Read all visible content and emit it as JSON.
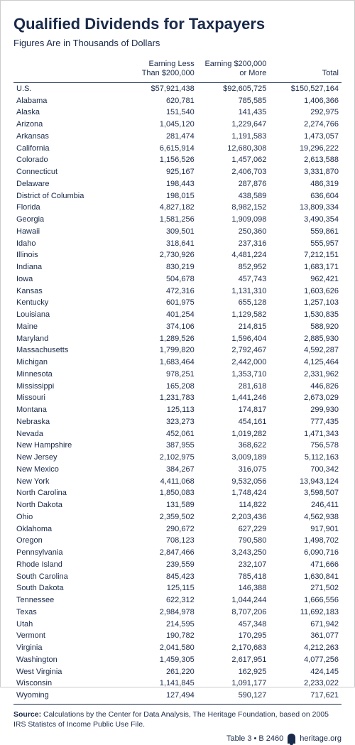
{
  "title": "Qualified Dividends for Taxpayers",
  "subtitle": "Figures Are in Thousands of Dollars",
  "columns": [
    "",
    "Earning Less\nThan $200,000",
    "Earning $200,000\nor More",
    "Total"
  ],
  "rows": [
    [
      "U.S.",
      "$57,921,438",
      "$92,605,725",
      "$150,527,164"
    ],
    [
      "Alabama",
      "620,781",
      "785,585",
      "1,406,366"
    ],
    [
      "Alaska",
      "151,540",
      "141,435",
      "292,975"
    ],
    [
      "Arizona",
      "1,045,120",
      "1,229,647",
      "2,274,766"
    ],
    [
      "Arkansas",
      "281,474",
      "1,191,583",
      "1,473,057"
    ],
    [
      "California",
      "6,615,914",
      "12,680,308",
      "19,296,222"
    ],
    [
      "Colorado",
      "1,156,526",
      "1,457,062",
      "2,613,588"
    ],
    [
      "Connecticut",
      "925,167",
      "2,406,703",
      "3,331,870"
    ],
    [
      "Delaware",
      "198,443",
      "287,876",
      "486,319"
    ],
    [
      "District of Columbia",
      "198,015",
      "438,589",
      "636,604"
    ],
    [
      "Florida",
      "4,827,182",
      "8,982,152",
      "13,809,334"
    ],
    [
      "Georgia",
      "1,581,256",
      "1,909,098",
      "3,490,354"
    ],
    [
      "Hawaii",
      "309,501",
      "250,360",
      "559,861"
    ],
    [
      "Idaho",
      "318,641",
      "237,316",
      "555,957"
    ],
    [
      "Illinois",
      "2,730,926",
      "4,481,224",
      "7,212,151"
    ],
    [
      "Indiana",
      "830,219",
      "852,952",
      "1,683,171"
    ],
    [
      "Iowa",
      "504,678",
      "457,743",
      "962,421"
    ],
    [
      "Kansas",
      "472,316",
      "1,131,310",
      "1,603,626"
    ],
    [
      "Kentucky",
      "601,975",
      "655,128",
      "1,257,103"
    ],
    [
      "Louisiana",
      "401,254",
      "1,129,582",
      "1,530,835"
    ],
    [
      "Maine",
      "374,106",
      "214,815",
      "588,920"
    ],
    [
      "Maryland",
      "1,289,526",
      "1,596,404",
      "2,885,930"
    ],
    [
      "Massachusetts",
      "1,799,820",
      "2,792,467",
      "4,592,287"
    ],
    [
      "Michigan",
      "1,683,464",
      "2,442,000",
      "4,125,464"
    ],
    [
      "Minnesota",
      "978,251",
      "1,353,710",
      "2,331,962"
    ],
    [
      "Mississippi",
      "165,208",
      "281,618",
      "446,826"
    ],
    [
      "Missouri",
      "1,231,783",
      "1,441,246",
      "2,673,029"
    ],
    [
      "Montana",
      "125,113",
      "174,817",
      "299,930"
    ],
    [
      "Nebraska",
      "323,273",
      "454,161",
      "777,435"
    ],
    [
      "Nevada",
      "452,061",
      "1,019,282",
      "1,471,343"
    ],
    [
      "New Hampshire",
      "387,955",
      "368,622",
      "756,578"
    ],
    [
      "New Jersey",
      "2,102,975",
      "3,009,189",
      "5,112,163"
    ],
    [
      "New Mexico",
      "384,267",
      "316,075",
      "700,342"
    ],
    [
      "New York",
      "4,411,068",
      "9,532,056",
      "13,943,124"
    ],
    [
      "North Carolina",
      "1,850,083",
      "1,748,424",
      "3,598,507"
    ],
    [
      "North Dakota",
      "131,589",
      "114,822",
      "246,411"
    ],
    [
      "Ohio",
      "2,359,502",
      "2,203,436",
      "4,562,938"
    ],
    [
      "Oklahoma",
      "290,672",
      "627,229",
      "917,901"
    ],
    [
      "Oregon",
      "708,123",
      "790,580",
      "1,498,702"
    ],
    [
      "Pennsylvania",
      "2,847,466",
      "3,243,250",
      "6,090,716"
    ],
    [
      "Rhode Island",
      "239,559",
      "232,107",
      "471,666"
    ],
    [
      "South Carolina",
      "845,423",
      "785,418",
      "1,630,841"
    ],
    [
      "South Dakota",
      "125,115",
      "146,388",
      "271,502"
    ],
    [
      "Tennessee",
      "622,312",
      "1,044,244",
      "1,666,556"
    ],
    [
      "Texas",
      "2,984,978",
      "8,707,206",
      "11,692,183"
    ],
    [
      "Utah",
      "214,595",
      "457,348",
      "671,942"
    ],
    [
      "Vermont",
      "190,782",
      "170,295",
      "361,077"
    ],
    [
      "Virginia",
      "2,041,580",
      "2,170,683",
      "4,212,263"
    ],
    [
      "Washington",
      "1,459,305",
      "2,617,951",
      "4,077,256"
    ],
    [
      "West Virginia",
      "261,220",
      "162,925",
      "424,145"
    ],
    [
      "Wisconsin",
      "1,141,845",
      "1,091,177",
      "2,233,022"
    ],
    [
      "Wyoming",
      "127,494",
      "590,127",
      "717,621"
    ]
  ],
  "source_label": "Source:",
  "source_text": " Calculations by the Center for Data Analysis, The Heritage Foundation, based on 2005 IRS Statistcs of Income Public Use File.",
  "footer_ref": "Table 3 • B 2460",
  "footer_site": "heritage.org",
  "style": {
    "text_color": "#1a2a4a",
    "background": "#ffffff",
    "title_fontsize": 22,
    "subtitle_fontsize": 13,
    "body_fontsize": 11,
    "col_widths_pct": [
      32,
      24,
      22,
      22
    ]
  }
}
